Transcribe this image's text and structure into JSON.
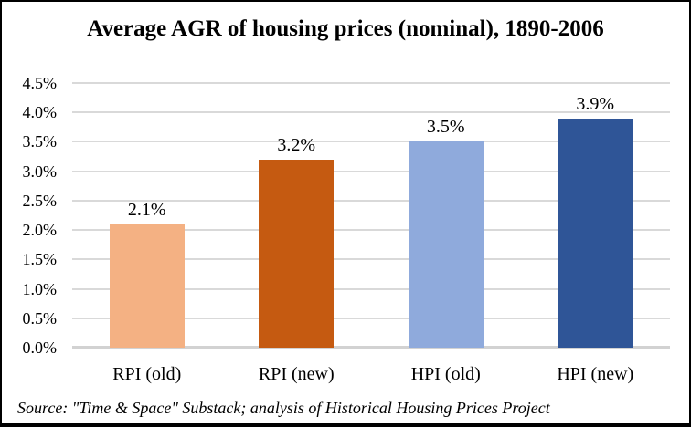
{
  "title": "Average AGR of housing prices (nominal), 1890-2006",
  "source_note": "Source: \"Time & Space\" Substack; analysis of Historical Housing Prices Project",
  "chart_data": {
    "type": "bar",
    "title": "Average AGR of housing prices (nominal), 1890-2006",
    "categories": [
      "RPI (old)",
      "RPI (new)",
      "HPI (old)",
      "HPI (new)"
    ],
    "values": [
      2.1,
      3.2,
      3.5,
      3.9
    ],
    "value_labels": [
      "2.1%",
      "3.2%",
      "3.5%",
      "3.9%"
    ],
    "bar_colors": [
      "#F4B183",
      "#C55A11",
      "#8FAADC",
      "#2F5597"
    ],
    "xlabel": "",
    "ylabel": "",
    "ylim": [
      0,
      4.5
    ],
    "ytick_step": 0.5,
    "ytick_labels": [
      "0.0%",
      "0.5%",
      "1.0%",
      "1.5%",
      "2.0%",
      "2.5%",
      "3.0%",
      "3.5%",
      "4.0%",
      "4.5%"
    ],
    "grid": "horizontal",
    "legend_position": "none",
    "gridline_color": "#D9D9D9",
    "axis_line_color": "#D2D2D2",
    "annotation": "Source: \"Time & Space\" Substack; analysis of Historical Housing Prices Project"
  }
}
